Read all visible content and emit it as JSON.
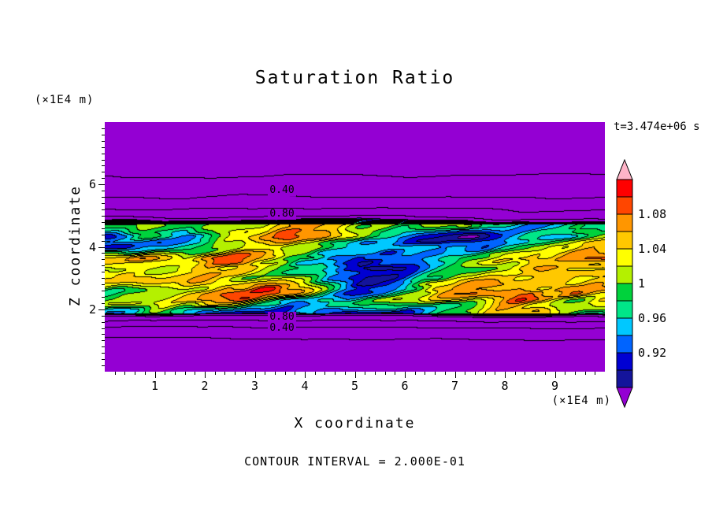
{
  "title": "Saturation Ratio",
  "time_label": "t=3.474e+06 s",
  "footnote": "CONTOUR INTERVAL = 2.000E-01",
  "axes": {
    "x_label": "X coordinate",
    "x_unit": "(×1E4 m)",
    "y_label": "Z coordinate",
    "y_unit": "(×1E4 m)",
    "x_ticks": [
      "1",
      "2",
      "3",
      "4",
      "5",
      "6",
      "7",
      "8",
      "9"
    ],
    "y_ticks": [
      "6",
      "4",
      "2"
    ]
  },
  "contour_labels": [
    "0.40",
    "0.80",
    "0.80",
    "0.40"
  ],
  "colorbar": {
    "labels": [
      "1.08",
      "1.04",
      "1",
      "0.96",
      "0.92"
    ]
  },
  "chart_data": {
    "type": "heatmap",
    "title": "Saturation Ratio",
    "xlabel": "X coordinate",
    "x_unit": "x1E4 m",
    "ylabel": "Z coordinate",
    "y_unit": "x1E4 m",
    "timestamp": "t=3.474e+06 s",
    "x_range": [
      0,
      10
    ],
    "z_range": [
      0,
      8
    ],
    "x_tick_values": [
      1,
      2,
      3,
      4,
      5,
      6,
      7,
      8,
      9
    ],
    "z_tick_values": [
      6,
      4,
      2
    ],
    "contour_interval": 0.2,
    "line_contour_levels": [
      0.2,
      0.4,
      0.6,
      0.8
    ],
    "labeled_line_contours": [
      0.4,
      0.8
    ],
    "fill_levels": [
      0.88,
      0.9,
      0.92,
      0.94,
      0.96,
      0.98,
      1.0,
      1.02,
      1.04,
      1.06,
      1.08,
      1.1,
      1.12
    ],
    "fill_colors": [
      "#14149B",
      "#0000D2",
      "#0064FF",
      "#00C8FF",
      "#00E688",
      "#00D23C",
      "#B4F000",
      "#FFFF00",
      "#FFC800",
      "#FF9600",
      "#FF4600",
      "#FF0000"
    ],
    "under_color": "#9400D3",
    "over_color": "#FFB4C8",
    "colorbar_tick_labels": [
      1.08,
      1.04,
      1,
      0.96,
      0.92
    ],
    "band": {
      "z_min": 1.85,
      "z_max": 4.75,
      "mean_value": 1.0,
      "fluctuation": 0.15,
      "note": "turbulent band of saturation ratio ~0.86-1.14 between z=1.85e4 m and z=4.75e4 m"
    },
    "background_note": "outside the band the ratio decays toward 0 (solid purple); line contours every 0.2 with 0.40 and 0.80 labeled above and below the band",
    "legend_position": "right-colorbar"
  }
}
